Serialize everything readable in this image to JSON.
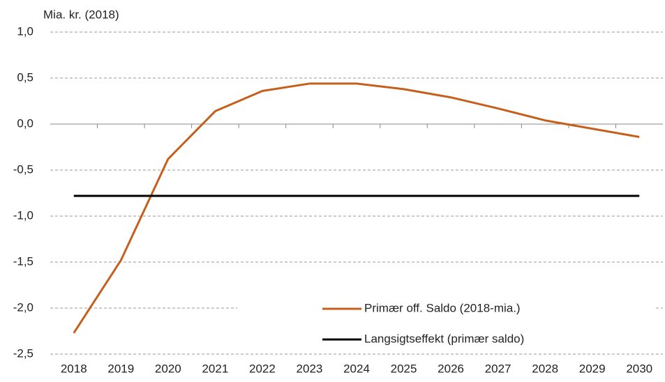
{
  "chart_data": {
    "type": "line",
    "y_axis_label": "Mia. kr. (2018)",
    "categories": [
      "2018",
      "2019",
      "2020",
      "2021",
      "2022",
      "2023",
      "2024",
      "2025",
      "2026",
      "2027",
      "2028",
      "2029",
      "2030"
    ],
    "series": [
      {
        "name": "Primær off. Saldo (2018-mia.)",
        "color": "#c65f1b",
        "values": [
          -2.27,
          -1.48,
          -0.38,
          0.14,
          0.36,
          0.44,
          0.44,
          0.38,
          0.29,
          0.17,
          0.04,
          -0.05,
          -0.14
        ]
      },
      {
        "name": "Langsigtseffekt (primær saldo)",
        "color": "#000000",
        "values": [
          -0.78,
          -0.78,
          -0.78,
          -0.78,
          -0.78,
          -0.78,
          -0.78,
          -0.78,
          -0.78,
          -0.78,
          -0.78,
          -0.78,
          -0.78
        ]
      }
    ],
    "ylim": [
      -2.5,
      1.0
    ],
    "yticks": [
      {
        "value": -2.5,
        "label": "-2,5"
      },
      {
        "value": -2.0,
        "label": "-2,0"
      },
      {
        "value": -1.5,
        "label": "-1,5"
      },
      {
        "value": -1.0,
        "label": "-1,0"
      },
      {
        "value": -0.5,
        "label": "-0,5"
      },
      {
        "value": 0,
        "label": "0,0"
      },
      {
        "value": 0.5,
        "label": "0,5"
      },
      {
        "value": 1.0,
        "label": "1,0"
      }
    ],
    "grid": true,
    "legend": "lower right"
  }
}
